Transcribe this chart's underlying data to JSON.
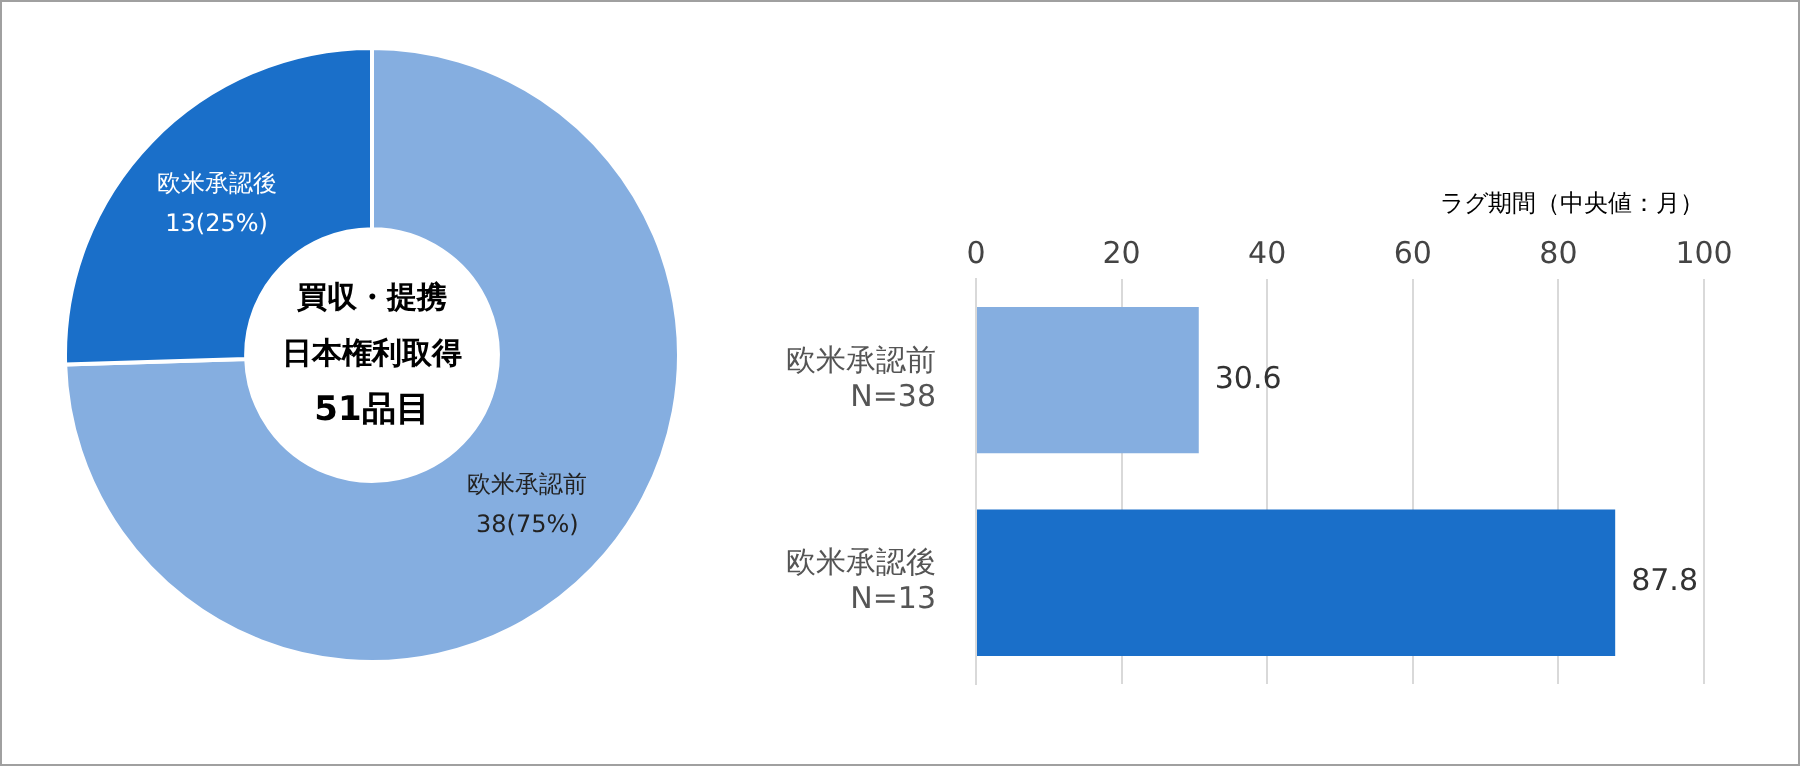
{
  "chart_data": [
    {
      "type": "donut",
      "categories": [
        "欧米承認前",
        "欧米承認後"
      ],
      "values": [
        38,
        13
      ],
      "colors": [
        "#85aee0",
        "#1a6fc9"
      ],
      "value_labels": [
        "38(75%)",
        "13(25%)"
      ],
      "annotations": [
        "買収・提携",
        "日本権利取得",
        "51品目"
      ],
      "legend": false
    },
    {
      "type": "bar",
      "orientation": "horizontal",
      "categories": [
        "欧米承認前\nN=38",
        "欧米承認後\nN=13"
      ],
      "values": [
        30.6,
        87.8
      ],
      "colors": [
        "#85aee0",
        "#1a6fc9"
      ],
      "xlabel": "ラグ期間（中央値：月）",
      "xlim": [
        0,
        100
      ],
      "xticks": [
        0,
        20,
        40,
        60,
        80,
        100
      ],
      "grid": "x",
      "data_labels": true,
      "legend": false
    }
  ]
}
